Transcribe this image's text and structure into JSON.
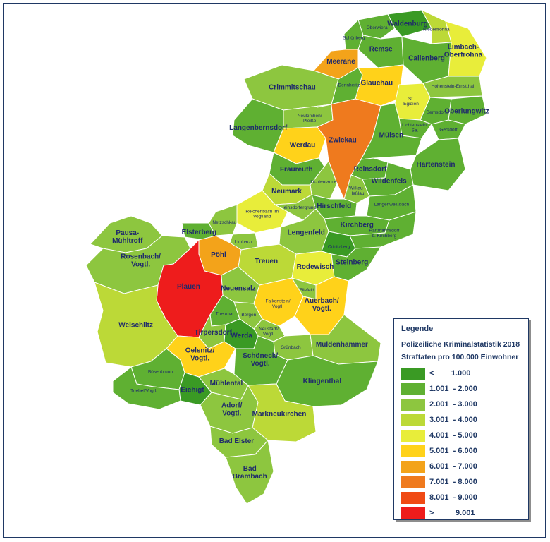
{
  "colors": {
    "c1": "#3a9a24",
    "c2": "#5fb032",
    "c3": "#8dc63f",
    "c4": "#bcd937",
    "c5": "#e8ed3a",
    "c6": "#ffd21a",
    "c7": "#f3a31a",
    "c8": "#ef7a1e",
    "c9": "#f04a14",
    "c10": "#ee1c1c",
    "border": "#ffffff",
    "outline": "#222222",
    "label": "#1f2a6b"
  },
  "legend": {
    "title": "Legende",
    "subtitle1": "Polizeiliche Kriminalstatistik 2018",
    "subtitle2": "Straftaten pro 100.000 Einwohner",
    "classes": [
      {
        "range": "<        1.000",
        "color": "#3a9a24"
      },
      {
        "range": "1.001  - 2.000",
        "color": "#5fb032"
      },
      {
        "range": "2.001  - 3.000",
        "color": "#8dc63f"
      },
      {
        "range": "3.001  - 4.000",
        "color": "#bcd937"
      },
      {
        "range": "4.001  - 5.000",
        "color": "#e8ed3a"
      },
      {
        "range": "5.001  - 6.000",
        "color": "#ffd21a"
      },
      {
        "range": "6.001  - 7.000",
        "color": "#f3a31a"
      },
      {
        "range": "7.001  - 8.000",
        "color": "#ef7a1e"
      },
      {
        "range": "8.001  - 9.000",
        "color": "#f04a14"
      },
      {
        "range": ">          9.001",
        "color": "#ee1c1c"
      }
    ]
  },
  "map": {
    "regions": [
      {
        "name": "Oberwiera",
        "cls": 2
      },
      {
        "name": "Waldenburg",
        "cls": 1
      },
      {
        "name": "Schönberg",
        "cls": 2
      },
      {
        "name": "Niederfrohna",
        "cls": 4
      },
      {
        "name": "Remse",
        "cls": 2
      },
      {
        "name": "Meerane",
        "cls": 7
      },
      {
        "name": "Callenberg",
        "cls": 2
      },
      {
        "name": "Limbach-Oberfrohna",
        "cls": 5
      },
      {
        "name": "Crimmitschau",
        "cls": 3
      },
      {
        "name": "Dennheritz",
        "cls": 2
      },
      {
        "name": "Glauchau",
        "cls": 6
      },
      {
        "name": "Hohenstein-Ernstthal",
        "cls": 3
      },
      {
        "name": "St. Egidien",
        "cls": 5
      },
      {
        "name": "Neukirchen/ Pleiße",
        "cls": 3
      },
      {
        "name": "Bernsdorf",
        "cls": 2
      },
      {
        "name": "Oberlungwitz",
        "cls": 2
      },
      {
        "name": "Lichtenstein/ Sa.",
        "cls": 2
      },
      {
        "name": "Gersdorf",
        "cls": 2
      },
      {
        "name": "Langenbernsdorf",
        "cls": 2
      },
      {
        "name": "Werdau",
        "cls": 6
      },
      {
        "name": "Zwickau",
        "cls": 8
      },
      {
        "name": "Mülsen",
        "cls": 2
      },
      {
        "name": "Fraureuth",
        "cls": 2
      },
      {
        "name": "Reinsdorf",
        "cls": 2
      },
      {
        "name": "Hartenstein",
        "cls": 2
      },
      {
        "name": "Lichtentanne",
        "cls": 3
      },
      {
        "name": "Wilkau-Haßlau",
        "cls": 3
      },
      {
        "name": "Wildenfels",
        "cls": 2
      },
      {
        "name": "Neumark",
        "cls": 4
      },
      {
        "name": "Hirschfeld",
        "cls": 2
      },
      {
        "name": "Langenweißbach",
        "cls": 2
      },
      {
        "name": "Reichenbach im Vogtland",
        "cls": 5
      },
      {
        "name": "Heinsdorfergrund",
        "cls": 3
      },
      {
        "name": "Kirchberg",
        "cls": 2
      },
      {
        "name": "Netzschkau",
        "cls": 3
      },
      {
        "name": "Elsterberg",
        "cls": 2
      },
      {
        "name": "Limbach",
        "cls": 3
      },
      {
        "name": "Hartmannsdorf b. Kirchberg",
        "cls": 2
      },
      {
        "name": "Pausa-Mühltroff",
        "cls": 3
      },
      {
        "name": "Lengenfeld",
        "cls": 3
      },
      {
        "name": "Crinitzberg",
        "cls": 1
      },
      {
        "name": "Pöhl",
        "cls": 7
      },
      {
        "name": "Rosenbach/ Vogtl.",
        "cls": 3
      },
      {
        "name": "Treuen",
        "cls": 4
      },
      {
        "name": "Rodewisch",
        "cls": 5
      },
      {
        "name": "Steinberg",
        "cls": 2
      },
      {
        "name": "Plauen",
        "cls": 10
      },
      {
        "name": "Neuensalz",
        "cls": 3
      },
      {
        "name": "Falkenstein/ Vogtl.",
        "cls": 6
      },
      {
        "name": "Ellefeld",
        "cls": 3
      },
      {
        "name": "Auerbach/ Vogtl.",
        "cls": 6
      },
      {
        "name": "Theuma",
        "cls": 2
      },
      {
        "name": "Bergen",
        "cls": 3
      },
      {
        "name": "Neustadt/ Vogtl.",
        "cls": 3
      },
      {
        "name": "Weischlitz",
        "cls": 4
      },
      {
        "name": "Tirpersdorf",
        "cls": 3
      },
      {
        "name": "Werda",
        "cls": 1
      },
      {
        "name": "Grünbach",
        "cls": 3
      },
      {
        "name": "Muldenhammer",
        "cls": 3
      },
      {
        "name": "Oelsnitz/ Vogtl.",
        "cls": 6
      },
      {
        "name": "Schöneck/ Vogtl.",
        "cls": 2
      },
      {
        "name": "Bösenbrunn",
        "cls": 2
      },
      {
        "name": "Eichigt",
        "cls": 1
      },
      {
        "name": "Mühlental",
        "cls": 3
      },
      {
        "name": "Klingenthal",
        "cls": 2
      },
      {
        "name": "Triebel/Vogtl.",
        "cls": 2
      },
      {
        "name": "Adorf/ Vogtl.",
        "cls": 3
      },
      {
        "name": "Markneukirchen",
        "cls": 4
      },
      {
        "name": "Bad Elster",
        "cls": 3
      },
      {
        "name": "Bad Brambach",
        "cls": 3
      }
    ]
  }
}
